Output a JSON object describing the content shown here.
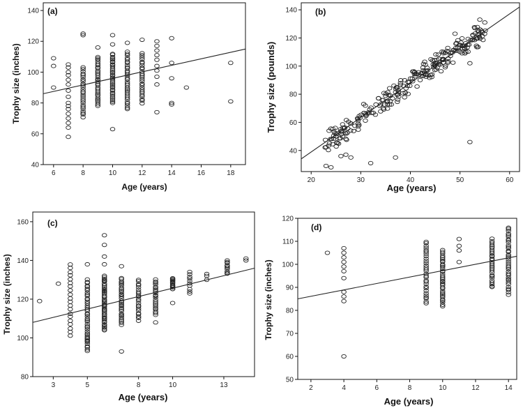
{
  "chart_data": [
    {
      "panel": "(a)",
      "type": "scatter",
      "xlabel": "Age (years)",
      "ylabel": "Trophy size (inches)",
      "xlim": [
        5.3,
        19.0
      ],
      "ylim": [
        40,
        145
      ],
      "xticks": [
        6,
        8,
        10,
        12,
        14,
        16,
        18
      ],
      "yticks": [
        40,
        60,
        80,
        100,
        120,
        140
      ],
      "fit": {
        "x": [
          5.3,
          19.0
        ],
        "y": [
          86,
          115
        ]
      },
      "clusters": [
        {
          "x": 6,
          "y": [
            90,
            104,
            109
          ]
        },
        {
          "x": 7,
          "y": [
            58,
            64,
            67,
            70,
            73,
            76,
            78,
            80,
            84,
            88,
            92,
            95,
            98,
            100,
            103,
            105
          ]
        },
        {
          "x": 8,
          "ymin": 71,
          "ymax": 103,
          "n": 26,
          "extra": [
            125,
            124
          ]
        },
        {
          "x": 9,
          "ymin": 78,
          "ymax": 110,
          "n": 30,
          "extra": [
            116
          ]
        },
        {
          "x": 10,
          "ymin": 80,
          "ymax": 112,
          "n": 34,
          "extra": [
            63,
            124,
            118
          ]
        },
        {
          "x": 11,
          "ymin": 76,
          "ymax": 113,
          "n": 32,
          "extra": [
            119
          ]
        },
        {
          "x": 12,
          "ymin": 80,
          "ymax": 112,
          "n": 26,
          "extra": [
            121
          ]
        },
        {
          "x": 13,
          "y": [
            74,
            92,
            97,
            101,
            104,
            108,
            111,
            114,
            117,
            120
          ]
        },
        {
          "x": 14,
          "y": [
            79,
            80,
            96,
            106,
            122
          ]
        },
        {
          "x": 15,
          "y": [
            90
          ]
        },
        {
          "x": 18,
          "y": [
            81,
            106
          ]
        }
      ]
    },
    {
      "panel": "(b)",
      "type": "scatter",
      "xlabel": "Age (years)",
      "ylabel": "Trophy size (pounds)",
      "xlim": [
        18,
        62
      ],
      "ylim": [
        25,
        145
      ],
      "xticks": [
        20,
        30,
        40,
        50,
        60
      ],
      "yticks": [
        40,
        60,
        80,
        100,
        120,
        140
      ],
      "fit": {
        "x": [
          18,
          62
        ],
        "y": [
          34,
          142
        ]
      },
      "band": {
        "x0": 23,
        "x1": 55,
        "n": 260,
        "spread": 9
      },
      "outliers": [
        [
          23,
          29
        ],
        [
          24,
          28
        ],
        [
          26,
          36
        ],
        [
          27,
          37
        ],
        [
          28,
          35
        ],
        [
          32,
          31
        ],
        [
          37,
          35
        ],
        [
          52,
          46
        ],
        [
          53,
          127
        ],
        [
          54,
          133
        ],
        [
          55,
          131
        ],
        [
          52,
          102
        ],
        [
          49,
          123
        ]
      ]
    },
    {
      "panel": "(c)",
      "type": "scatter",
      "xlabel": "Age (years)",
      "ylabel": "Trophy size (inches)",
      "xlim": [
        1.8,
        14.8
      ],
      "ylim": [
        80,
        165
      ],
      "xticks": [
        3,
        5,
        8,
        10,
        13
      ],
      "ytick_values": [
        80,
        100,
        120,
        140,
        160
      ],
      "fit": {
        "x": [
          1.8,
          14.8
        ],
        "y": [
          108,
          136
        ]
      },
      "clusters": [
        {
          "x": 2.2,
          "y": [
            119
          ]
        },
        {
          "x": 3.3,
          "y": [
            128
          ]
        },
        {
          "x": 4,
          "ymin": 101,
          "ymax": 138,
          "n": 20
        },
        {
          "x": 5,
          "ymin": 93,
          "ymax": 130,
          "n": 40,
          "extra": [
            138,
            99,
            100
          ]
        },
        {
          "x": 6,
          "ymin": 104,
          "ymax": 132,
          "n": 45,
          "extra": [
            153,
            148,
            142,
            138
          ]
        },
        {
          "x": 7,
          "ymin": 107,
          "ymax": 131,
          "n": 30,
          "extra": [
            93,
            137
          ]
        },
        {
          "x": 8,
          "ymin": 109,
          "ymax": 130,
          "n": 22
        },
        {
          "x": 9,
          "ymin": 112,
          "ymax": 130,
          "n": 22,
          "extra": [
            108
          ]
        },
        {
          "x": 10,
          "ymin": 125,
          "ymax": 131,
          "n": 14,
          "extra": [
            118
          ]
        },
        {
          "x": 11,
          "ymin": 123,
          "ymax": 134,
          "n": 10
        },
        {
          "x": 12,
          "y": [
            130,
            132,
            133
          ]
        },
        {
          "x": 13.2,
          "ymin": 133,
          "ymax": 140,
          "n": 10
        },
        {
          "x": 14.3,
          "y": [
            140,
            141
          ]
        }
      ]
    },
    {
      "panel": "(d)",
      "type": "scatter",
      "xlabel": "Age (years)",
      "ylabel": "Trophy size (inches)",
      "xlim": [
        1.2,
        14.5
      ],
      "ylim": [
        50,
        120
      ],
      "xticks": [
        2,
        4,
        6,
        8,
        10,
        12,
        14
      ],
      "yticks": [
        50,
        60,
        70,
        80,
        90,
        100,
        110,
        120
      ],
      "fit": {
        "x": [
          1.2,
          14.5
        ],
        "y": [
          85,
          103.5
        ]
      },
      "clusters": [
        {
          "x": 3,
          "y": [
            105
          ]
        },
        {
          "x": 4,
          "y": [
            60,
            84,
            86,
            88,
            94,
            97,
            99,
            101,
            103,
            105,
            107
          ]
        },
        {
          "x": 9,
          "ymin": 83,
          "ymax": 110,
          "n": 30
        },
        {
          "x": 10,
          "ymin": 82,
          "ymax": 106,
          "n": 34
        },
        {
          "x": 11,
          "y": [
            101,
            106,
            108,
            111
          ]
        },
        {
          "x": 13,
          "ymin": 90,
          "ymax": 111,
          "n": 28
        },
        {
          "x": 14,
          "ymin": 87,
          "ymax": 116,
          "n": 36
        }
      ]
    }
  ]
}
